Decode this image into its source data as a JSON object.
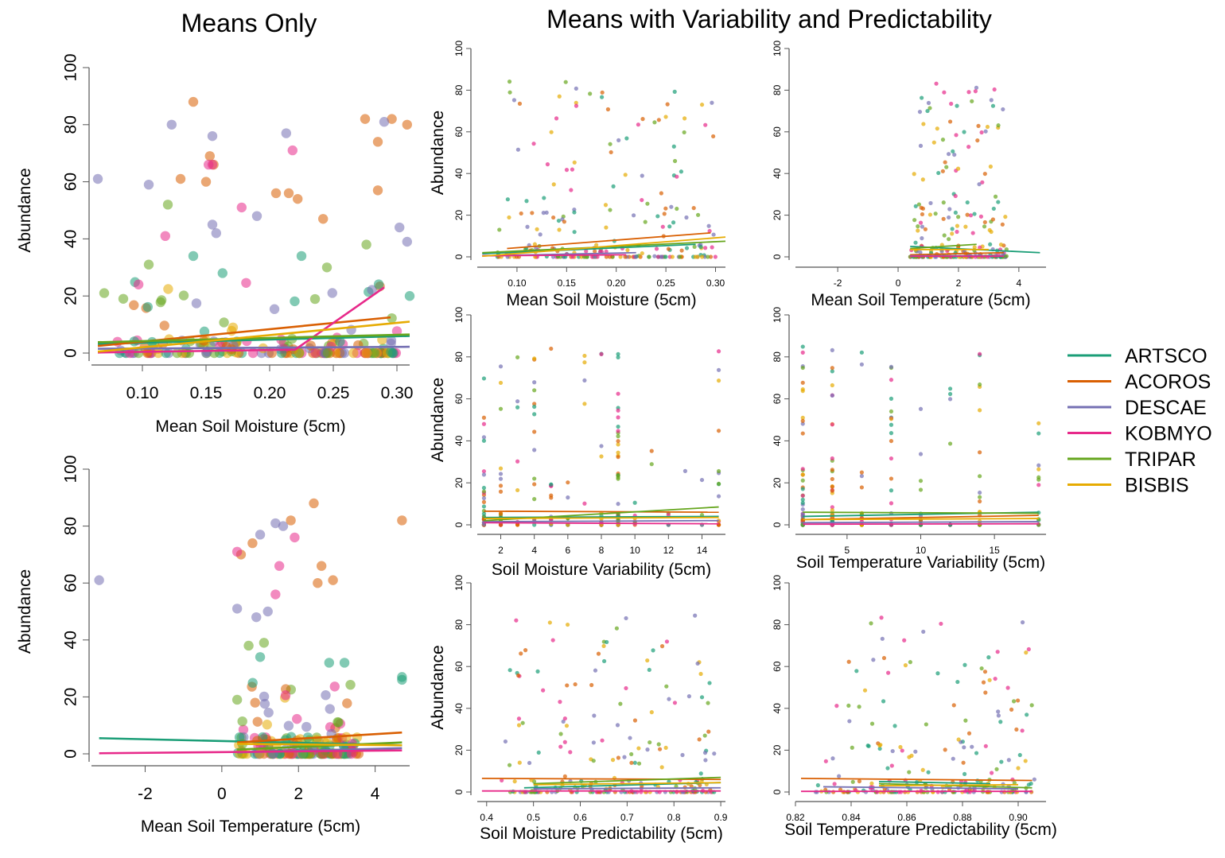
{
  "titles": {
    "left": "Means Only",
    "right": "Means with Variability and Predictability"
  },
  "legend": [
    {
      "name": "ARTSCO",
      "color": "#1b9e77"
    },
    {
      "name": "ACOROS",
      "color": "#d95f02"
    },
    {
      "name": "DESCAE",
      "color": "#7570b3"
    },
    {
      "name": "KOBMYO",
      "color": "#e7298a"
    },
    {
      "name": "TRIPAR",
      "color": "#66a61e"
    },
    {
      "name": "BISBIS",
      "color": "#e6ab02"
    }
  ],
  "chart_data": [
    {
      "id": "mo-moisture",
      "type": "scatter",
      "xlabel": "Mean Soil Moisture (5cm)",
      "ylabel": "Abundance",
      "xlim": [
        0.06,
        0.31
      ],
      "ylim": [
        0,
        100
      ],
      "xticks": [
        0.1,
        0.15,
        0.2,
        0.25,
        0.3
      ],
      "xtick_labels": [
        "0.10",
        "0.15",
        "0.20",
        "0.25",
        "0.30"
      ],
      "yticks": [
        0,
        20,
        40,
        60,
        80,
        100
      ],
      "lines": [
        {
          "series": "ARTSCO",
          "x": [
            0.065,
            0.31
          ],
          "y": [
            3.2,
            6.0
          ]
        },
        {
          "series": "ACOROS",
          "x": [
            0.065,
            0.295
          ],
          "y": [
            2.5,
            12.5
          ]
        },
        {
          "series": "DESCAE",
          "x": [
            0.065,
            0.31
          ],
          "y": [
            1.5,
            2.2
          ]
        },
        {
          "series": "KOBMYO",
          "x": [
            0.065,
            0.22,
            0.29
          ],
          "y": [
            0.2,
            1.2,
            23.0
          ]
        },
        {
          "series": "TRIPAR",
          "x": [
            0.065,
            0.31
          ],
          "y": [
            3.8,
            6.5
          ]
        },
        {
          "series": "BISBIS",
          "x": [
            0.065,
            0.31
          ],
          "y": [
            0.5,
            11.0
          ]
        }
      ],
      "labeled_points": [
        {
          "series": "ACOROS",
          "x": [
            0.14,
            0.275,
            0.285,
            0.296,
            0.308,
            0.13,
            0.153,
            0.156,
            0.15,
            0.205,
            0.215,
            0.222,
            0.242,
            0.285
          ],
          "y": [
            88,
            82,
            74,
            82,
            80,
            61,
            69,
            66,
            60,
            56,
            56,
            54,
            47,
            57
          ]
        },
        {
          "series": "DESCAE",
          "x": [
            0.065,
            0.123,
            0.155,
            0.213,
            0.29,
            0.302,
            0.308,
            0.105,
            0.155,
            0.158,
            0.19
          ],
          "y": [
            61,
            80,
            76,
            77,
            81,
            44,
            39,
            59,
            45,
            42,
            48
          ]
        },
        {
          "series": "KOBMYO",
          "x": [
            0.152,
            0.155,
            0.218,
            0.178,
            0.118
          ],
          "y": [
            66,
            66,
            71,
            51,
            41
          ]
        },
        {
          "series": "TRIPAR",
          "x": [
            0.12,
            0.105,
            0.276,
            0.07,
            0.085,
            0.245
          ],
          "y": [
            52,
            31,
            38,
            21,
            19,
            30
          ]
        },
        {
          "series": "ARTSCO",
          "x": [
            0.14,
            0.225,
            0.163,
            0.31
          ],
          "y": [
            34,
            34,
            28,
            20
          ]
        }
      ]
    },
    {
      "id": "mo-temperature",
      "type": "scatter",
      "xlabel": "Mean Soil Temperature (5cm)",
      "ylabel": "Abundance",
      "xlim": [
        -3.4,
        4.9
      ],
      "ylim": [
        0,
        100
      ],
      "xticks": [
        -2,
        0,
        2,
        4
      ],
      "xtick_labels": [
        "-2",
        "0",
        "2",
        "4"
      ],
      "yticks": [
        0,
        20,
        40,
        60,
        80,
        100
      ],
      "lines": [
        {
          "series": "ARTSCO",
          "x": [
            -3.2,
            4.7
          ],
          "y": [
            5.5,
            3.0
          ]
        },
        {
          "series": "ACOROS",
          "x": [
            0.4,
            4.7
          ],
          "y": [
            4.0,
            7.5
          ]
        },
        {
          "series": "DESCAE",
          "x": [
            0.4,
            4.7
          ],
          "y": [
            0.5,
            2.0
          ]
        },
        {
          "series": "KOBMYO",
          "x": [
            -3.2,
            4.7
          ],
          "y": [
            0.2,
            1.2
          ]
        },
        {
          "series": "TRIPAR",
          "x": [
            0.4,
            4.7
          ],
          "y": [
            1.5,
            4.0
          ]
        },
        {
          "series": "BISBIS",
          "x": [
            0.4,
            4.7
          ],
          "y": [
            3.5,
            3.0
          ]
        }
      ],
      "labeled_points": [
        {
          "series": "DESCAE",
          "x": [
            -3.2,
            1.0,
            1.4,
            1.6,
            0.4,
            0.9,
            1.2
          ],
          "y": [
            61,
            77,
            81,
            80,
            51,
            48,
            50
          ]
        },
        {
          "series": "ACOROS",
          "x": [
            2.4,
            4.7,
            0.5,
            0.8,
            1.8,
            2.6,
            2.9,
            2.5
          ],
          "y": [
            88,
            82,
            70,
            74,
            82,
            66,
            61,
            60
          ]
        },
        {
          "series": "KOBMYO",
          "x": [
            0.4,
            1.5,
            1.9,
            1.4
          ],
          "y": [
            71,
            66,
            76,
            56
          ]
        },
        {
          "series": "ARTSCO",
          "x": [
            4.7,
            4.7,
            2.8,
            3.2,
            1.0
          ],
          "y": [
            27,
            26,
            32,
            32,
            34
          ]
        },
        {
          "series": "TRIPAR",
          "x": [
            0.4,
            0.7,
            1.1
          ],
          "y": [
            19,
            38,
            39
          ]
        }
      ]
    },
    {
      "id": "mv-moisture",
      "type": "scatter",
      "xlabel": "Mean Soil Moisture (5cm)",
      "ylabel": "Abundance",
      "xlim": [
        0.06,
        0.31
      ],
      "ylim": [
        0,
        100
      ],
      "xticks": [
        0.1,
        0.15,
        0.2,
        0.25,
        0.3
      ],
      "xtick_labels": [
        "0.10",
        "0.15",
        "0.20",
        "0.25",
        "0.30"
      ],
      "yticks": [
        0,
        20,
        40,
        60,
        80,
        100
      ],
      "lines": [
        {
          "series": "ARTSCO",
          "x": [
            0.065,
            0.28
          ],
          "y": [
            1.5,
            6.0
          ]
        },
        {
          "series": "ACOROS",
          "x": [
            0.09,
            0.295
          ],
          "y": [
            4.0,
            11.5
          ]
        },
        {
          "series": "DESCAE",
          "x": [
            0.065,
            0.22
          ],
          "y": [
            0.5,
            2.0
          ]
        },
        {
          "series": "KOBMYO",
          "x": [
            0.065,
            0.21
          ],
          "y": [
            0.5,
            1.0
          ]
        },
        {
          "series": "TRIPAR",
          "x": [
            0.065,
            0.31
          ],
          "y": [
            2.0,
            7.5
          ]
        },
        {
          "series": "BISBIS",
          "x": [
            0.065,
            0.31
          ],
          "y": [
            0.3,
            9.5
          ]
        }
      ]
    },
    {
      "id": "mv-temperature",
      "type": "scatter",
      "xlabel": "Mean Soil Temperature (5cm)",
      "ylabel": "",
      "xlim": [
        -3.4,
        4.9
      ],
      "ylim": [
        0,
        100
      ],
      "xticks": [
        -2,
        0,
        2,
        4
      ],
      "xtick_labels": [
        "-2",
        "0",
        "2",
        "4"
      ],
      "yticks": [
        0,
        20,
        40,
        60,
        80,
        100
      ],
      "lines": [
        {
          "series": "ARTSCO",
          "x": [
            0.4,
            4.7
          ],
          "y": [
            5.0,
            2.0
          ]
        },
        {
          "series": "ACOROS",
          "x": [
            0.4,
            3.5
          ],
          "y": [
            1.0,
            2.0
          ]
        },
        {
          "series": "DESCAE",
          "x": [
            0.4,
            3.5
          ],
          "y": [
            0.5,
            0.5
          ]
        },
        {
          "series": "KOBMYO",
          "x": [
            0.4,
            3.5
          ],
          "y": [
            0.3,
            0.3
          ]
        },
        {
          "series": "TRIPAR",
          "x": [
            0.4,
            2.6
          ],
          "y": [
            4.0,
            6.0
          ]
        },
        {
          "series": "BISBIS",
          "x": [
            0.4,
            3.0
          ],
          "y": [
            3.5,
            3.5
          ]
        }
      ]
    },
    {
      "id": "mv-moisture-variability",
      "type": "scatter",
      "xlabel": "Soil Moisture Variability (5cm)",
      "ylabel": "Abundance",
      "xlim": [
        0.6,
        15.4
      ],
      "ylim": [
        0,
        100
      ],
      "xticks": [
        2,
        4,
        6,
        8,
        10,
        12,
        14
      ],
      "xtick_labels": [
        "2",
        "4",
        "6",
        "8",
        "10",
        "12",
        "14"
      ],
      "yticks": [
        0,
        20,
        40,
        60,
        80,
        100
      ],
      "lines": [
        {
          "series": "ARTSCO",
          "x": [
            1,
            15
          ],
          "y": [
            3.5,
            4.0
          ]
        },
        {
          "series": "ACOROS",
          "x": [
            1,
            15
          ],
          "y": [
            6.5,
            6.0
          ]
        },
        {
          "series": "DESCAE",
          "x": [
            1,
            15
          ],
          "y": [
            1.5,
            2.0
          ]
        },
        {
          "series": "KOBMYO",
          "x": [
            1,
            15
          ],
          "y": [
            1.0,
            0.5
          ]
        },
        {
          "series": "TRIPAR",
          "x": [
            1,
            15
          ],
          "y": [
            2.0,
            8.5
          ]
        },
        {
          "series": "BISBIS",
          "x": [
            1,
            15
          ],
          "y": [
            3.0,
            3.5
          ]
        }
      ]
    },
    {
      "id": "mv-temperature-variability",
      "type": "scatter",
      "xlabel": "Soil Temperature Variability (5cm)",
      "ylabel": "",
      "xlim": [
        1.5,
        18.5
      ],
      "ylim": [
        0,
        100
      ],
      "xticks": [
        5,
        10,
        15
      ],
      "xtick_labels": [
        "5",
        "10",
        "15"
      ],
      "yticks": [
        0,
        20,
        40,
        60,
        80,
        100
      ],
      "lines": [
        {
          "series": "ARTSCO",
          "x": [
            2,
            18
          ],
          "y": [
            4.0,
            6.0
          ]
        },
        {
          "series": "ACOROS",
          "x": [
            2,
            18
          ],
          "y": [
            2.5,
            4.5
          ]
        },
        {
          "series": "DESCAE",
          "x": [
            2,
            18
          ],
          "y": [
            1.0,
            1.5
          ]
        },
        {
          "series": "KOBMYO",
          "x": [
            2,
            18
          ],
          "y": [
            0.3,
            0.5
          ]
        },
        {
          "series": "TRIPAR",
          "x": [
            2,
            18
          ],
          "y": [
            6.0,
            5.5
          ]
        },
        {
          "series": "BISBIS",
          "x": [
            2,
            18
          ],
          "y": [
            2.5,
            3.0
          ]
        }
      ]
    },
    {
      "id": "mv-moisture-predictability",
      "type": "scatter",
      "xlabel": "Soil Moisture Predictability (5cm)",
      "ylabel": "Abundance",
      "xlim": [
        0.38,
        0.91
      ],
      "ylim": [
        0,
        100
      ],
      "xticks": [
        0.4,
        0.5,
        0.6,
        0.7,
        0.8,
        0.9
      ],
      "xtick_labels": [
        "0.4",
        "0.5",
        "0.6",
        "0.7",
        "0.8",
        "0.9"
      ],
      "yticks": [
        0,
        20,
        40,
        60,
        80,
        100
      ],
      "lines": [
        {
          "series": "ARTSCO",
          "x": [
            0.48,
            0.9
          ],
          "y": [
            2.0,
            4.5
          ]
        },
        {
          "series": "ACOROS",
          "x": [
            0.39,
            0.9
          ],
          "y": [
            6.5,
            6.0
          ]
        },
        {
          "series": "DESCAE",
          "x": [
            0.5,
            0.9
          ],
          "y": [
            1.5,
            2.0
          ]
        },
        {
          "series": "KOBMYO",
          "x": [
            0.39,
            0.9
          ],
          "y": [
            0.5,
            0.5
          ]
        },
        {
          "series": "TRIPAR",
          "x": [
            0.5,
            0.9
          ],
          "y": [
            4.0,
            7.0
          ]
        },
        {
          "series": "BISBIS",
          "x": [
            0.5,
            0.9
          ],
          "y": [
            3.5,
            4.5
          ]
        }
      ]
    },
    {
      "id": "mv-temperature-predictability",
      "type": "scatter",
      "xlabel": "Soil Temperature Predictability (5cm)",
      "ylabel": "",
      "xlim": [
        0.82,
        0.91
      ],
      "ylim": [
        0,
        100
      ],
      "xticks": [
        0.82,
        0.84,
        0.86,
        0.88,
        0.9
      ],
      "xtick_labels": [
        "0.82",
        "0.84",
        "0.86",
        "0.88",
        "0.90"
      ],
      "yticks": [
        0,
        20,
        40,
        60,
        80,
        100
      ],
      "lines": [
        {
          "series": "ARTSCO",
          "x": [
            0.85,
            0.89
          ],
          "y": [
            5.0,
            4.0
          ]
        },
        {
          "series": "ACOROS",
          "x": [
            0.822,
            0.905
          ],
          "y": [
            6.5,
            5.5
          ]
        },
        {
          "series": "DESCAE",
          "x": [
            0.83,
            0.9
          ],
          "y": [
            2.5,
            1.5
          ]
        },
        {
          "series": "KOBMYO",
          "x": [
            0.822,
            0.905
          ],
          "y": [
            0.3,
            0.3
          ]
        },
        {
          "series": "TRIPAR",
          "x": [
            0.85,
            0.905
          ],
          "y": [
            4.0,
            2.0
          ]
        },
        {
          "series": "BISBIS",
          "x": [
            0.85,
            0.9
          ],
          "y": [
            3.0,
            3.5
          ]
        }
      ]
    }
  ]
}
